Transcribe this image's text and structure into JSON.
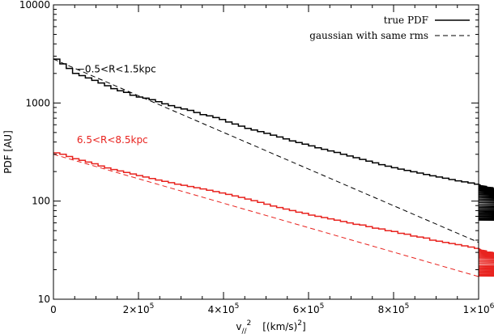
{
  "chart_data": {
    "type": "line",
    "title": "",
    "xlabel": {
      "base": "v",
      "sub": "//",
      "sup": "2",
      "units": "[(km/s)",
      "units_sup": "2",
      "units_close": "]"
    },
    "ylabel": "PDF [AU]",
    "xlim": [
      0,
      1000000
    ],
    "ylim": [
      10,
      10000
    ],
    "yscale": "log",
    "x_ticks": [
      {
        "value": 0,
        "text": "0",
        "sup": ""
      },
      {
        "value": 200000,
        "text": "2×10",
        "sup": "5"
      },
      {
        "value": 400000,
        "text": "4×10",
        "sup": "5"
      },
      {
        "value": 600000,
        "text": "6×10",
        "sup": "5"
      },
      {
        "value": 800000,
        "text": "8×10",
        "sup": "5"
      },
      {
        "value": 1000000,
        "text": "1×10",
        "sup": "6"
      }
    ],
    "y_ticks": [
      {
        "value": 10,
        "text": "10"
      },
      {
        "value": 100,
        "text": "100"
      },
      {
        "value": 1000,
        "text": "1000"
      },
      {
        "value": 10000,
        "text": "10000"
      }
    ],
    "legend": {
      "position": "top-right",
      "entries": [
        {
          "label": "true PDF",
          "style": "solid"
        },
        {
          "label": "gaussian with same rms",
          "style": "dashed"
        }
      ]
    },
    "annotations": [
      {
        "text": "−0.5<R<1.5kpc",
        "color": "#000000",
        "x": 55000,
        "y": 2050
      },
      {
        "text": "6.5<R<8.5kpc",
        "color": "#e8231f",
        "x": 55000,
        "y": 390
      }
    ],
    "series": [
      {
        "color": "#000000",
        "style": "histogram",
        "bin_width": 15000,
        "x_start": 0,
        "values": [
          2800,
          2500,
          2250,
          2000,
          1900,
          1800,
          1700,
          1600,
          1500,
          1400,
          1330,
          1280,
          1200,
          1150,
          1120,
          1080,
          1030,
          980,
          940,
          900,
          870,
          840,
          800,
          760,
          740,
          710,
          680,
          640,
          610,
          580,
          550,
          530,
          510,
          490,
          470,
          450,
          430,
          410,
          395,
          380,
          365,
          350,
          337,
          325,
          313,
          300,
          288,
          277,
          266,
          255,
          245,
          235,
          227,
          219,
          212,
          205,
          199,
          193,
          187,
          181,
          176,
          171,
          166,
          161,
          157,
          153,
          149,
          145,
          141,
          137,
          133,
          129,
          125,
          121,
          117,
          113,
          109,
          105,
          101,
          97,
          93,
          89,
          86,
          83,
          80,
          78,
          76,
          74,
          72,
          70,
          68,
          66,
          65,
          64
        ]
      },
      {
        "color": "#000000",
        "style": "dashed",
        "x": [
          0,
          1000000
        ],
        "y": [
          2800,
          38
        ]
      },
      {
        "color": "#e8231f",
        "style": "histogram",
        "bin_width": 15000,
        "x_start": 0,
        "values": [
          310,
          300,
          285,
          270,
          260,
          250,
          240,
          228,
          218,
          210,
          203,
          196,
          189,
          182,
          176,
          170,
          164,
          159,
          154,
          149,
          145,
          141,
          137,
          133,
          129,
          125,
          121,
          117,
          113,
          109,
          105,
          101,
          97,
          93,
          89,
          86,
          83,
          80,
          77,
          75,
          72,
          70,
          68,
          66,
          64,
          62,
          60,
          58,
          57,
          55,
          53,
          52,
          50,
          49,
          47,
          46,
          44,
          43,
          42,
          40,
          39,
          38,
          37,
          36,
          35,
          34,
          33,
          32,
          31,
          30,
          29.5,
          29,
          28.5,
          28,
          27.5,
          27,
          26.5,
          26,
          25,
          24,
          23,
          22,
          21.5,
          21,
          20.5,
          20,
          19.5,
          19,
          18.7,
          18.4,
          18.1,
          17.8,
          17.5,
          17.2
        ]
      },
      {
        "color": "#e8231f",
        "style": "dashed",
        "x": [
          0,
          1000000
        ],
        "y": [
          300,
          17
        ]
      }
    ]
  }
}
